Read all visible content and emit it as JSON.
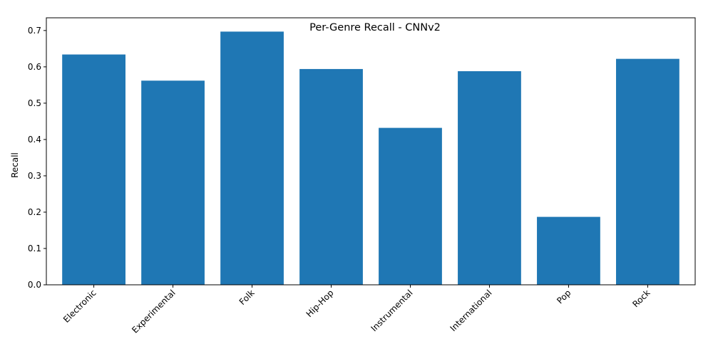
{
  "chart_data": {
    "type": "bar",
    "title": "Per-Genre Recall - CNNv2",
    "xlabel": "",
    "ylabel": "Recall",
    "categories": [
      "Electronic",
      "Experimental",
      "Folk",
      "Hip-Hop",
      "Instrumental",
      "International",
      "Pop",
      "Rock"
    ],
    "values": [
      0.634,
      0.562,
      0.697,
      0.594,
      0.432,
      0.588,
      0.187,
      0.622
    ],
    "ylim": [
      0,
      0.735
    ],
    "yticks": [
      0.0,
      0.1,
      0.2,
      0.3,
      0.4,
      0.5,
      0.6,
      0.7
    ],
    "ytick_labels": [
      "0.0",
      "0.1",
      "0.2",
      "0.3",
      "0.4",
      "0.5",
      "0.6",
      "0.7"
    ],
    "bar_color": "#1f77b4",
    "grid": false,
    "legend": "none"
  }
}
